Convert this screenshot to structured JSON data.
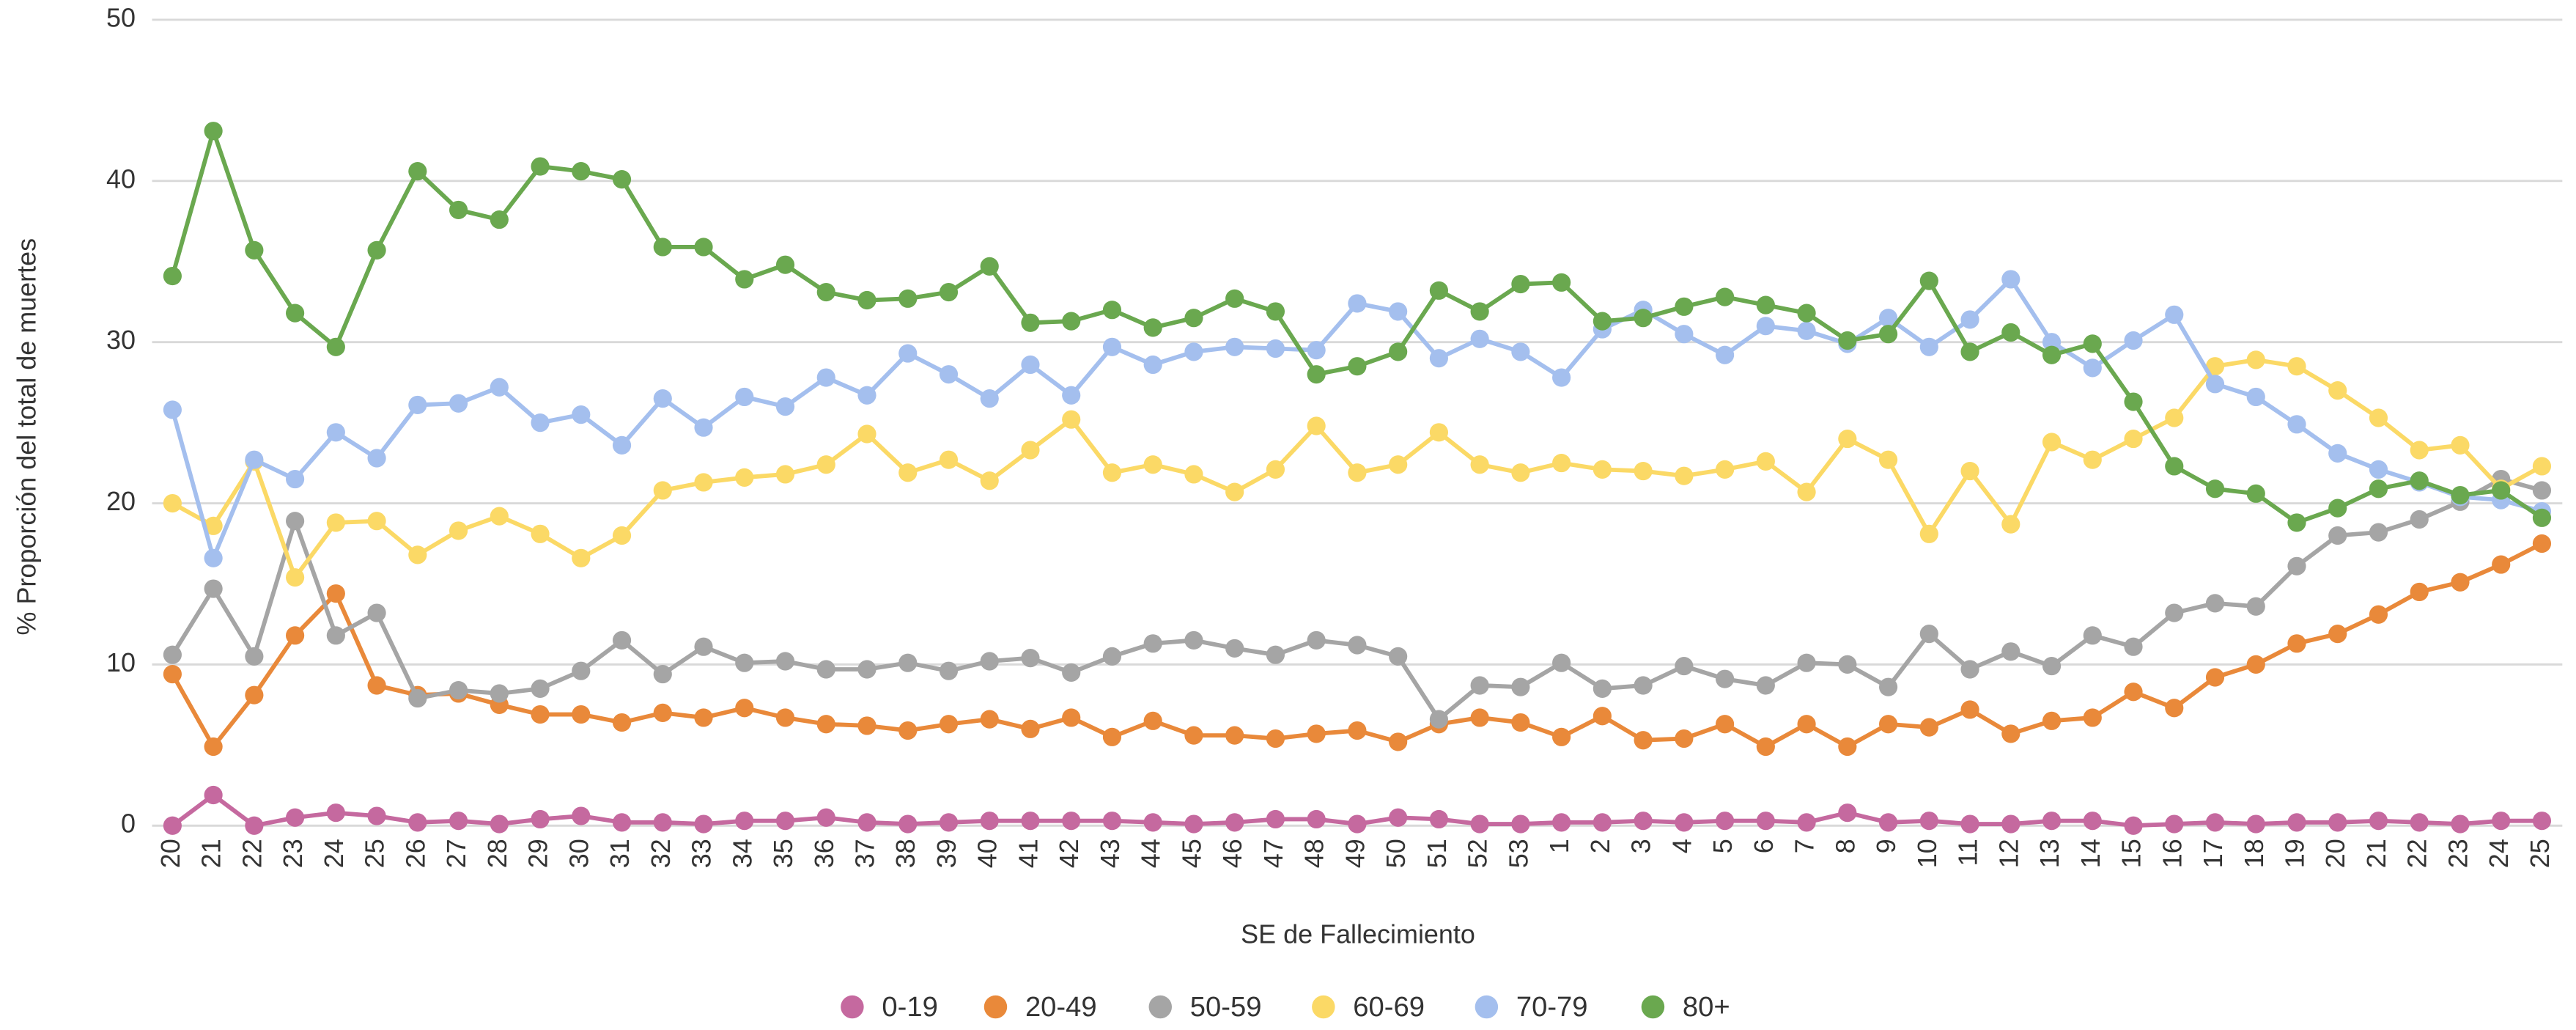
{
  "chart_data": {
    "type": "line",
    "x_label": "SE de Fallecimiento",
    "y_label": "% Proporción del total de muertes",
    "categories": [
      "20",
      "21",
      "22",
      "23",
      "24",
      "25",
      "26",
      "27",
      "28",
      "29",
      "30",
      "31",
      "32",
      "33",
      "34",
      "35",
      "36",
      "37",
      "38",
      "39",
      "40",
      "41",
      "42",
      "43",
      "44",
      "45",
      "46",
      "47",
      "48",
      "49",
      "50",
      "51",
      "52",
      "53",
      "1",
      "2",
      "3",
      "4",
      "5",
      "6",
      "7",
      "8",
      "9",
      "10",
      "11",
      "12",
      "13",
      "14",
      "15",
      "16",
      "17",
      "18",
      "19",
      "20",
      "21",
      "22",
      "23",
      "24",
      "25"
    ],
    "series": [
      {
        "name": "0-19",
        "color": "#c5699f",
        "values": [
          0.0,
          1.9,
          0.0,
          0.5,
          0.8,
          0.6,
          0.2,
          0.3,
          0.1,
          0.4,
          0.6,
          0.2,
          0.2,
          0.1,
          0.3,
          0.3,
          0.5,
          0.2,
          0.1,
          0.2,
          0.3,
          0.3,
          0.3,
          0.3,
          0.2,
          0.1,
          0.2,
          0.4,
          0.4,
          0.1,
          0.5,
          0.4,
          0.1,
          0.1,
          0.2,
          0.2,
          0.3,
          0.2,
          0.3,
          0.3,
          0.2,
          0.8,
          0.2,
          0.3,
          0.1,
          0.1,
          0.3,
          0.3,
          0.0,
          0.1,
          0.2,
          0.1,
          0.2,
          0.2,
          0.3,
          0.2,
          0.1,
          0.3,
          0.3
        ]
      },
      {
        "name": "20-49",
        "color": "#e9893a",
        "values": [
          9.4,
          4.9,
          8.1,
          11.8,
          14.4,
          8.7,
          8.1,
          8.2,
          7.5,
          6.9,
          6.9,
          6.4,
          7.0,
          6.7,
          7.3,
          6.7,
          6.3,
          6.2,
          5.9,
          6.3,
          6.6,
          6.0,
          6.7,
          5.5,
          6.5,
          5.6,
          5.6,
          5.4,
          5.7,
          5.9,
          5.2,
          6.3,
          6.7,
          6.4,
          5.5,
          6.8,
          5.3,
          5.4,
          6.3,
          4.9,
          6.3,
          4.9,
          6.3,
          6.1,
          7.2,
          5.7,
          6.5,
          6.7,
          8.3,
          7.3,
          9.2,
          10.0,
          11.3,
          11.9,
          13.1,
          14.5,
          15.1,
          16.2,
          17.5
        ]
      },
      {
        "name": "50-59",
        "color": "#a5a5a5",
        "values": [
          10.6,
          14.7,
          10.5,
          18.9,
          11.8,
          13.2,
          7.9,
          8.4,
          8.2,
          8.5,
          9.6,
          11.5,
          9.4,
          11.1,
          10.1,
          10.2,
          9.7,
          9.7,
          10.1,
          9.6,
          10.2,
          10.4,
          9.5,
          10.5,
          11.3,
          11.5,
          11.0,
          10.6,
          11.5,
          11.2,
          10.5,
          6.6,
          8.7,
          8.6,
          10.1,
          8.5,
          8.7,
          9.9,
          9.1,
          8.7,
          10.1,
          10.0,
          8.6,
          11.9,
          9.7,
          10.8,
          9.9,
          11.8,
          11.1,
          13.2,
          13.8,
          13.6,
          16.1,
          18.0,
          18.2,
          19.0,
          20.1,
          21.5,
          20.8
        ]
      },
      {
        "name": "60-69",
        "color": "#fbd966",
        "values": [
          20.0,
          18.6,
          22.6,
          15.4,
          18.8,
          18.9,
          16.8,
          18.3,
          19.2,
          18.1,
          16.6,
          18.0,
          20.8,
          21.3,
          21.6,
          21.8,
          22.4,
          24.3,
          21.9,
          22.7,
          21.4,
          23.3,
          25.2,
          21.9,
          22.4,
          21.8,
          20.7,
          22.1,
          24.8,
          21.9,
          22.4,
          24.4,
          22.4,
          21.9,
          22.5,
          22.1,
          22.0,
          21.7,
          22.1,
          22.6,
          20.7,
          24.0,
          22.7,
          18.1,
          22.0,
          18.7,
          23.8,
          22.7,
          24.0,
          25.3,
          28.5,
          28.9,
          28.5,
          27.0,
          25.3,
          23.3,
          23.6,
          20.9,
          22.3
        ]
      },
      {
        "name": "70-79",
        "color": "#a4bfee",
        "values": [
          25.8,
          16.6,
          22.7,
          21.5,
          24.4,
          22.8,
          26.1,
          26.2,
          27.2,
          25.0,
          25.5,
          23.6,
          26.5,
          24.7,
          26.6,
          26.0,
          27.8,
          26.7,
          29.3,
          28.0,
          26.5,
          28.6,
          26.7,
          29.7,
          28.6,
          29.4,
          29.7,
          29.6,
          29.5,
          32.4,
          31.9,
          29.0,
          30.2,
          29.4,
          27.8,
          30.8,
          32.0,
          30.5,
          29.2,
          31.0,
          30.7,
          29.9,
          31.5,
          29.7,
          31.4,
          33.9,
          30.0,
          28.4,
          30.1,
          31.7,
          27.4,
          26.6,
          24.9,
          23.1,
          22.1,
          21.3,
          20.4,
          20.2,
          19.5
        ]
      },
      {
        "name": "80+",
        "color": "#6aa84f",
        "values": [
          34.1,
          43.1,
          35.7,
          31.8,
          29.7,
          35.7,
          40.6,
          38.2,
          37.6,
          40.9,
          40.6,
          40.1,
          35.9,
          35.9,
          33.9,
          34.8,
          33.1,
          32.6,
          32.7,
          33.1,
          34.7,
          31.2,
          31.3,
          32.0,
          30.9,
          31.5,
          32.7,
          31.9,
          28.0,
          28.5,
          29.4,
          33.2,
          31.9,
          33.6,
          33.7,
          31.3,
          31.5,
          32.2,
          32.8,
          32.3,
          31.8,
          30.1,
          30.5,
          33.8,
          29.4,
          30.6,
          29.2,
          29.9,
          26.3,
          22.3,
          20.9,
          20.6,
          18.8,
          19.7,
          20.9,
          21.4,
          20.5,
          20.8,
          19.1
        ]
      }
    ],
    "ylim": [
      0,
      50
    ],
    "yticks": [
      0,
      10,
      20,
      30,
      40,
      50
    ],
    "grid": true,
    "legend": "bottom"
  }
}
